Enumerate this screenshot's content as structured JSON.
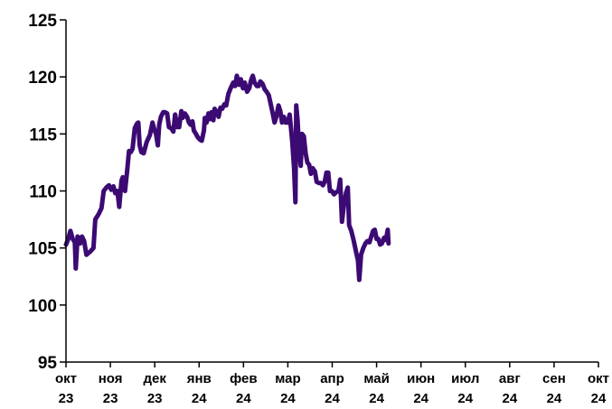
{
  "chart_data": {
    "type": "line",
    "title": "",
    "xlabel": "",
    "ylabel": "",
    "ylim": [
      95,
      125
    ],
    "yticks": [
      95,
      100,
      105,
      110,
      115,
      120,
      125
    ],
    "xticks": [
      {
        "month": "окт",
        "year": "23"
      },
      {
        "month": "ноя",
        "year": "23"
      },
      {
        "month": "дек",
        "year": "23"
      },
      {
        "month": "янв",
        "year": "24"
      },
      {
        "month": "фев",
        "year": "24"
      },
      {
        "month": "мар",
        "year": "24"
      },
      {
        "month": "апр",
        "year": "24"
      },
      {
        "month": "май",
        "year": "24"
      },
      {
        "month": "июн",
        "year": "24"
      },
      {
        "month": "июл",
        "year": "24"
      },
      {
        "month": "авг",
        "year": "24"
      },
      {
        "month": "сен",
        "year": "24"
      },
      {
        "month": "окт",
        "year": "24"
      }
    ],
    "line_color": "#3c0a73",
    "series": [
      {
        "values": [
          [
            0.0,
            105.3
          ],
          [
            0.05,
            105.8
          ],
          [
            0.1,
            106.5
          ],
          [
            0.15,
            105.8
          ],
          [
            0.2,
            105.5
          ],
          [
            0.22,
            103.2
          ],
          [
            0.26,
            106.0
          ],
          [
            0.32,
            105.4
          ],
          [
            0.36,
            106.0
          ],
          [
            0.41,
            105.6
          ],
          [
            0.46,
            104.4
          ],
          [
            0.55,
            104.7
          ],
          [
            0.62,
            105.0
          ],
          [
            0.66,
            107.5
          ],
          [
            0.74,
            108.0
          ],
          [
            0.8,
            108.5
          ],
          [
            0.85,
            110.0
          ],
          [
            0.91,
            110.3
          ],
          [
            0.97,
            110.5
          ],
          [
            1.02,
            110.1
          ],
          [
            1.07,
            110.4
          ],
          [
            1.11,
            109.8
          ],
          [
            1.16,
            110.0
          ],
          [
            1.2,
            108.6
          ],
          [
            1.25,
            110.9
          ],
          [
            1.28,
            111.2
          ],
          [
            1.33,
            110.0
          ],
          [
            1.38,
            111.8
          ],
          [
            1.42,
            113.5
          ],
          [
            1.46,
            113.4
          ],
          [
            1.5,
            113.7
          ],
          [
            1.55,
            115.5
          ],
          [
            1.6,
            115.9
          ],
          [
            1.63,
            116.0
          ],
          [
            1.66,
            114.0
          ],
          [
            1.7,
            113.4
          ],
          [
            1.75,
            113.3
          ],
          [
            1.82,
            114.3
          ],
          [
            1.89,
            114.9
          ],
          [
            1.95,
            116.0
          ],
          [
            1.99,
            115.4
          ],
          [
            2.03,
            115.0
          ],
          [
            2.07,
            114.0
          ],
          [
            2.1,
            115.8
          ],
          [
            2.14,
            116.5
          ],
          [
            2.19,
            116.9
          ],
          [
            2.23,
            116.9
          ],
          [
            2.28,
            116.8
          ],
          [
            2.32,
            115.6
          ],
          [
            2.37,
            115.5
          ],
          [
            2.42,
            115.2
          ],
          [
            2.46,
            116.7
          ],
          [
            2.51,
            115.6
          ],
          [
            2.55,
            115.6
          ],
          [
            2.6,
            117.0
          ],
          [
            2.63,
            116.4
          ],
          [
            2.68,
            116.8
          ],
          [
            2.73,
            116.5
          ],
          [
            2.77,
            116.0
          ],
          [
            2.81,
            115.8
          ],
          [
            2.85,
            116.1
          ],
          [
            2.88,
            115.3
          ],
          [
            2.93,
            115.0
          ],
          [
            2.97,
            114.7
          ],
          [
            3.02,
            114.5
          ],
          [
            3.06,
            114.4
          ],
          [
            3.11,
            115.3
          ],
          [
            3.13,
            116.4
          ],
          [
            3.17,
            116.0
          ],
          [
            3.21,
            116.8
          ],
          [
            3.25,
            116.3
          ],
          [
            3.28,
            116.9
          ],
          [
            3.32,
            116.2
          ],
          [
            3.35,
            117.2
          ],
          [
            3.4,
            116.9
          ],
          [
            3.44,
            116.5
          ],
          [
            3.48,
            117.3
          ],
          [
            3.52,
            117.2
          ],
          [
            3.57,
            117.6
          ],
          [
            3.61,
            117.5
          ],
          [
            3.66,
            118.5
          ],
          [
            3.71,
            119.0
          ],
          [
            3.77,
            119.5
          ],
          [
            3.81,
            119.2
          ],
          [
            3.85,
            120.1
          ],
          [
            3.9,
            119.3
          ],
          [
            3.94,
            119.8
          ],
          [
            3.99,
            119.0
          ],
          [
            4.03,
            119.5
          ],
          [
            4.08,
            118.7
          ],
          [
            4.13,
            119.0
          ],
          [
            4.17,
            119.7
          ],
          [
            4.21,
            120.1
          ],
          [
            4.25,
            119.5
          ],
          [
            4.3,
            119.2
          ],
          [
            4.34,
            119.2
          ],
          [
            4.38,
            119.6
          ],
          [
            4.43,
            119.4
          ],
          [
            4.48,
            118.9
          ],
          [
            4.52,
            118.7
          ],
          [
            4.57,
            118.4
          ],
          [
            4.62,
            117.5
          ],
          [
            4.66,
            116.8
          ],
          [
            4.7,
            116.0
          ],
          [
            4.74,
            116.5
          ],
          [
            4.79,
            117.5
          ],
          [
            4.83,
            117.0
          ],
          [
            4.87,
            116.0
          ],
          [
            4.91,
            116.5
          ],
          [
            4.95,
            116.0
          ],
          [
            5.0,
            116.0
          ],
          [
            5.04,
            116.7
          ],
          [
            5.07,
            115.5
          ],
          [
            5.1,
            114.3
          ],
          [
            5.14,
            112.0
          ],
          [
            5.17,
            109.0
          ],
          [
            5.19,
            117.5
          ],
          [
            5.22,
            116.2
          ],
          [
            5.25,
            113.8
          ],
          [
            5.29,
            112.2
          ],
          [
            5.32,
            115.0
          ],
          [
            5.36,
            114.8
          ],
          [
            5.4,
            113.3
          ],
          [
            5.44,
            112.5
          ],
          [
            5.48,
            112.3
          ],
          [
            5.52,
            111.5
          ],
          [
            5.56,
            112.0
          ],
          [
            5.61,
            111.7
          ],
          [
            5.65,
            110.8
          ],
          [
            5.7,
            110.7
          ],
          [
            5.75,
            110.7
          ],
          [
            5.79,
            110.5
          ],
          [
            5.83,
            110.8
          ],
          [
            5.87,
            111.6
          ],
          [
            5.91,
            111.6
          ],
          [
            5.95,
            110.0
          ],
          [
            5.99,
            110.0
          ],
          [
            6.04,
            109.7
          ],
          [
            6.09,
            109.9
          ],
          [
            6.14,
            110.0
          ],
          [
            6.18,
            111.0
          ],
          [
            6.22,
            107.3
          ],
          [
            6.26,
            108.7
          ],
          [
            6.31,
            109.8
          ],
          [
            6.35,
            110.3
          ],
          [
            6.38,
            107.0
          ],
          [
            6.43,
            106.5
          ],
          [
            6.48,
            105.7
          ],
          [
            6.53,
            104.8
          ],
          [
            6.58,
            103.9
          ],
          [
            6.61,
            102.2
          ],
          [
            6.65,
            104.4
          ],
          [
            6.7,
            105.0
          ],
          [
            6.75,
            105.4
          ],
          [
            6.79,
            105.6
          ],
          [
            6.84,
            105.5
          ],
          [
            6.88,
            106.0
          ],
          [
            6.92,
            106.5
          ],
          [
            6.96,
            106.6
          ],
          [
            7.0,
            105.8
          ],
          [
            7.04,
            105.8
          ],
          [
            7.08,
            105.3
          ],
          [
            7.12,
            105.4
          ],
          [
            7.17,
            105.9
          ],
          [
            7.21,
            105.7
          ],
          [
            7.25,
            106.6
          ],
          [
            7.27,
            105.4
          ]
        ]
      }
    ]
  }
}
